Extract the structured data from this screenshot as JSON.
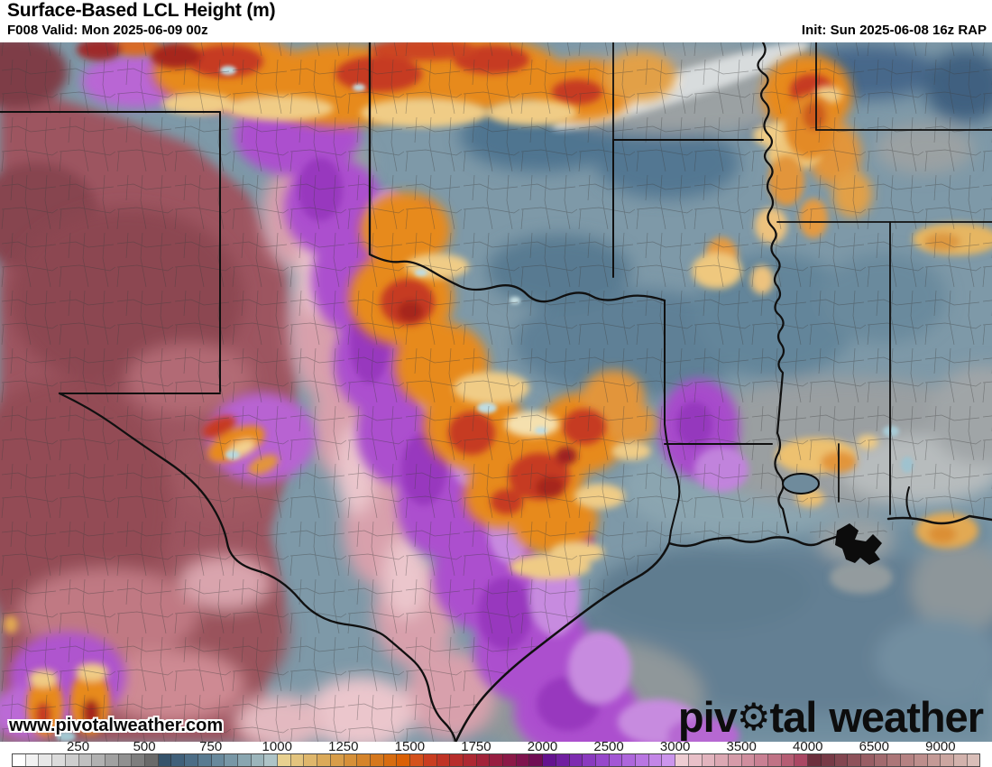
{
  "header": {
    "title": "Surface-Based LCL Height (m)",
    "forecast_line": "F008 Valid: Mon 2025-06-09 00z",
    "init_line": "Init: Sun 2025-06-08 16z RAP"
  },
  "watermark": "www.pivotalweather.com",
  "logo": {
    "part1": "piv",
    "gear_icon": "⚙",
    "part2": "tal",
    "part3": "weather"
  },
  "map_colors": {
    "low_lcl_blue": "#5e8096",
    "cloud_gray": "#b9bfc0",
    "dryline_orange": "#e78a1e",
    "ridge_red": "#c63a21",
    "swath_purple": "#ac50ce",
    "west_maroon": "#9d5560",
    "gulf_slate": "#6e8c9e"
  },
  "colorbar": {
    "units": "m",
    "cells": [
      "#ffffff",
      "#f2f2f2",
      "#e7e7e7",
      "#dbdbdb",
      "#cecece",
      "#c0c0c0",
      "#b1b1b1",
      "#a1a1a1",
      "#909090",
      "#7e7e7e",
      "#6a6a6a",
      "#35536b",
      "#40607a",
      "#4c6d86",
      "#597b91",
      "#68899c",
      "#7897a6",
      "#89a6b0",
      "#9bb5bb",
      "#aec4c7",
      "#e8d190",
      "#e3c47e",
      "#dfb76c",
      "#dbaa5a",
      "#d89d49",
      "#d69039",
      "#d5842b",
      "#d5781d",
      "#d76c10",
      "#da6005",
      "#d4511c",
      "#c93d20",
      "#c03325",
      "#b72d2b",
      "#ad2832",
      "#a22339",
      "#971e40",
      "#8b1947",
      "#7e134d",
      "#700d53",
      "#64138f",
      "#701fa0",
      "#7d2cb0",
      "#8a3abf",
      "#9748cb",
      "#a357d5",
      "#ae66dc",
      "#b976e2",
      "#c386e7",
      "#cc95ec",
      "#eeccd2",
      "#e8c0c8",
      "#e2b4be",
      "#dca8b3",
      "#d69ba9",
      "#d08e9e",
      "#c98093",
      "#c07285",
      "#b55d73",
      "#aa4763",
      "#6c2f3c",
      "#773a46",
      "#834650",
      "#8e525a",
      "#985e64",
      "#a26a6e",
      "#ac7678",
      "#b58282",
      "#bd8e8c",
      "#c49a96",
      "#cba6a0",
      "#d2b2ac",
      "#d9beb8"
    ],
    "ticks": [
      {
        "label": "250",
        "cell": 5
      },
      {
        "label": "500",
        "cell": 10
      },
      {
        "label": "750",
        "cell": 15
      },
      {
        "label": "1000",
        "cell": 20
      },
      {
        "label": "1250",
        "cell": 25
      },
      {
        "label": "1500",
        "cell": 30
      },
      {
        "label": "1750",
        "cell": 35
      },
      {
        "label": "2000",
        "cell": 40
      },
      {
        "label": "2500",
        "cell": 45
      },
      {
        "label": "3000",
        "cell": 50
      },
      {
        "label": "3500",
        "cell": 55
      },
      {
        "label": "4000",
        "cell": 60
      },
      {
        "label": "6500",
        "cell": 65
      },
      {
        "label": "9000",
        "cell": 70
      }
    ]
  }
}
